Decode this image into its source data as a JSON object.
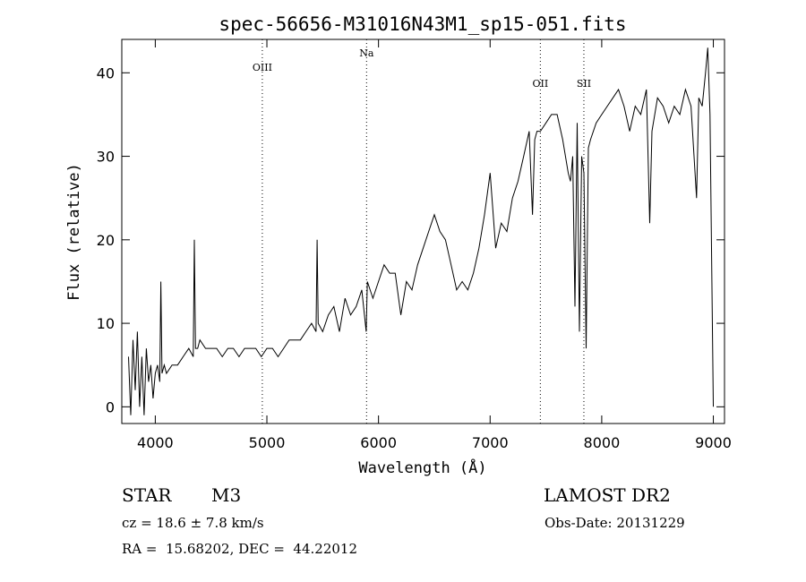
{
  "chart_data": {
    "type": "line",
    "title": "spec-56656-M31016N43M1_sp15-051.fits",
    "xlabel": "Wavelength (Å)",
    "ylabel": "Flux (relative)",
    "xlim": [
      3700,
      9100
    ],
    "ylim": [
      -2,
      44
    ],
    "xticks": [
      4000,
      5000,
      6000,
      7000,
      8000,
      9000
    ],
    "yticks": [
      0,
      10,
      20,
      30,
      40
    ],
    "grid": false,
    "line_color": "#000000",
    "lines": [
      {
        "label": "OIII",
        "x": 4959
      },
      {
        "label": "Na",
        "x": 5893
      },
      {
        "label": "OII",
        "x": 7450
      },
      {
        "label": "SII",
        "x": 7840
      }
    ],
    "series": [
      {
        "x": [
          3760,
          3780,
          3800,
          3820,
          3840,
          3860,
          3880,
          3900,
          3920,
          3940,
          3960,
          3980,
          4000,
          4020,
          4040,
          4050,
          4060,
          4080,
          4100,
          4150,
          4200,
          4250,
          4300,
          4340,
          4350,
          4360,
          4380,
          4400,
          4450,
          4500,
          4550,
          4600,
          4650,
          4700,
          4750,
          4800,
          4850,
          4900,
          4950,
          5000,
          5050,
          5100,
          5150,
          5200,
          5250,
          5300,
          5350,
          5400,
          5440,
          5450,
          5460,
          5500,
          5550,
          5600,
          5650,
          5700,
          5750,
          5800,
          5850,
          5890,
          5900,
          5950,
          6000,
          6050,
          6100,
          6150,
          6200,
          6250,
          6300,
          6350,
          6400,
          6450,
          6500,
          6550,
          6600,
          6650,
          6700,
          6750,
          6800,
          6850,
          6900,
          6950,
          7000,
          7050,
          7100,
          7150,
          7200,
          7250,
          7300,
          7350,
          7380,
          7400,
          7420,
          7450,
          7500,
          7550,
          7600,
          7650,
          7700,
          7720,
          7740,
          7760,
          7780,
          7800,
          7820,
          7840,
          7860,
          7880,
          7900,
          7950,
          8000,
          8050,
          8100,
          8150,
          8200,
          8250,
          8300,
          8350,
          8400,
          8430,
          8450,
          8500,
          8550,
          8600,
          8650,
          8700,
          8750,
          8800,
          8850,
          8870,
          8900,
          8930,
          8950,
          8970,
          9000
        ],
        "y": [
          6,
          -1,
          8,
          2,
          9,
          0,
          6,
          -1,
          7,
          3,
          5,
          1,
          4,
          5,
          3,
          15,
          4,
          5,
          4,
          5,
          5,
          6,
          7,
          6,
          20,
          7,
          7,
          8,
          7,
          7,
          7,
          6,
          7,
          7,
          6,
          7,
          7,
          7,
          6,
          7,
          7,
          6,
          7,
          8,
          8,
          8,
          9,
          10,
          9,
          20,
          10,
          9,
          11,
          12,
          9,
          13,
          11,
          12,
          14,
          9,
          15,
          13,
          15,
          17,
          16,
          16,
          11,
          15,
          14,
          17,
          19,
          21,
          23,
          21,
          20,
          17,
          14,
          15,
          14,
          16,
          19,
          23,
          28,
          19,
          22,
          21,
          25,
          27,
          30,
          33,
          23,
          32,
          33,
          33,
          34,
          35,
          35,
          32,
          28,
          27,
          30,
          12,
          34,
          9,
          30,
          28,
          7,
          31,
          32,
          34,
          35,
          36,
          37,
          38,
          36,
          33,
          36,
          35,
          38,
          22,
          33,
          37,
          36,
          34,
          36,
          35,
          38,
          36,
          25,
          37,
          36,
          40,
          43,
          35,
          0
        ]
      }
    ]
  },
  "info": {
    "object_type": "STAR",
    "subclass": "M3",
    "survey": "LAMOST DR2",
    "cz": "cz = 18.6 ± 7.8 km/s",
    "obs_date": "Obs-Date: 20131229",
    "coords": "RA =  15.68202, DEC =  44.22012"
  }
}
